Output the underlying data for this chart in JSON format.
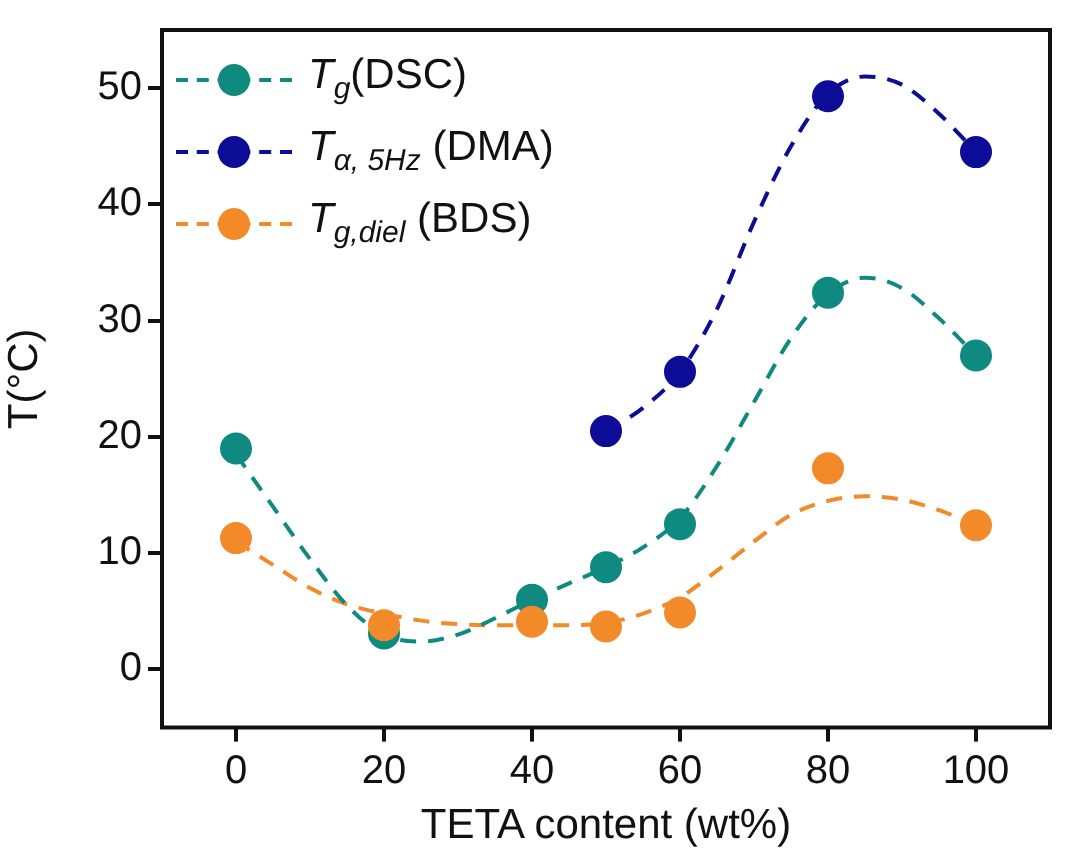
{
  "chart_data": {
    "type": "scatter",
    "xlabel": "TETA content (wt%)",
    "ylabel": "T(°C)",
    "xlim": [
      -10,
      110
    ],
    "xticks": [
      0,
      20,
      40,
      60,
      80,
      100
    ],
    "ylim": [
      -5,
      55
    ],
    "yticks": [
      0,
      10,
      20,
      30,
      40,
      50
    ],
    "grid": false,
    "legend": "top left",
    "line_style": "dashed",
    "series": [
      {
        "name": "T$_{g}$(DSC)",
        "marker": "circle",
        "color": "#0e8a80",
        "x": [
          0,
          20,
          40,
          50,
          60,
          80,
          100
        ],
        "values": [
          19,
          3.1,
          6,
          8.8,
          12.5,
          32.4,
          27
        ]
      },
      {
        "name": "T$_{α, 5Hz}$ (DMA)",
        "marker": "circle",
        "color": "#0c0c96",
        "x": [
          50,
          60,
          80,
          100
        ],
        "values": [
          20.5,
          25.6,
          49.3,
          44.5
        ]
      },
      {
        "name": "T$_{g,diel}$ (BDS)",
        "marker": "circle",
        "color": "#f28a2a",
        "x": [
          0,
          20,
          40,
          50,
          60,
          80,
          100
        ],
        "values": [
          11.3,
          3.8,
          4.1,
          3.7,
          4.9,
          17.3,
          12.4
        ]
      },
      {
        "type": "line",
        "marker": "none",
        "color": "#0e8a80",
        "x": [
          0,
          5,
          10,
          15,
          20,
          25,
          30,
          35,
          40,
          45,
          50,
          55,
          60,
          65,
          70,
          75,
          80,
          85,
          90,
          95,
          100
        ],
        "values": [
          18.5,
          14,
          9.5,
          5.5,
          3,
          2.4,
          3,
          4.4,
          6,
          7.4,
          8.8,
          10.5,
          13,
          17.5,
          23,
          28.5,
          32.3,
          33.7,
          32.8,
          30.2,
          27
        ]
      },
      {
        "type": "line",
        "marker": "none",
        "color": "#0c0c96",
        "x": [
          50,
          55,
          60,
          65,
          70,
          75,
          80,
          85,
          90,
          95,
          100
        ],
        "values": [
          20.5,
          22.5,
          25.6,
          31,
          38.5,
          45,
          49.5,
          51,
          50.3,
          47.8,
          44.5
        ]
      },
      {
        "type": "line",
        "marker": "none",
        "color": "#f28a2a",
        "x": [
          0,
          5,
          10,
          15,
          20,
          25,
          30,
          35,
          40,
          45,
          50,
          55,
          60,
          65,
          70,
          75,
          80,
          85,
          90,
          95,
          100
        ],
        "values": [
          11,
          9,
          7,
          5.6,
          4.8,
          4.2,
          3.9,
          3.8,
          3.8,
          3.8,
          4,
          4.8,
          6.2,
          8.5,
          11,
          13.3,
          14.5,
          14.9,
          14.6,
          13.7,
          12.4
        ]
      }
    ]
  }
}
